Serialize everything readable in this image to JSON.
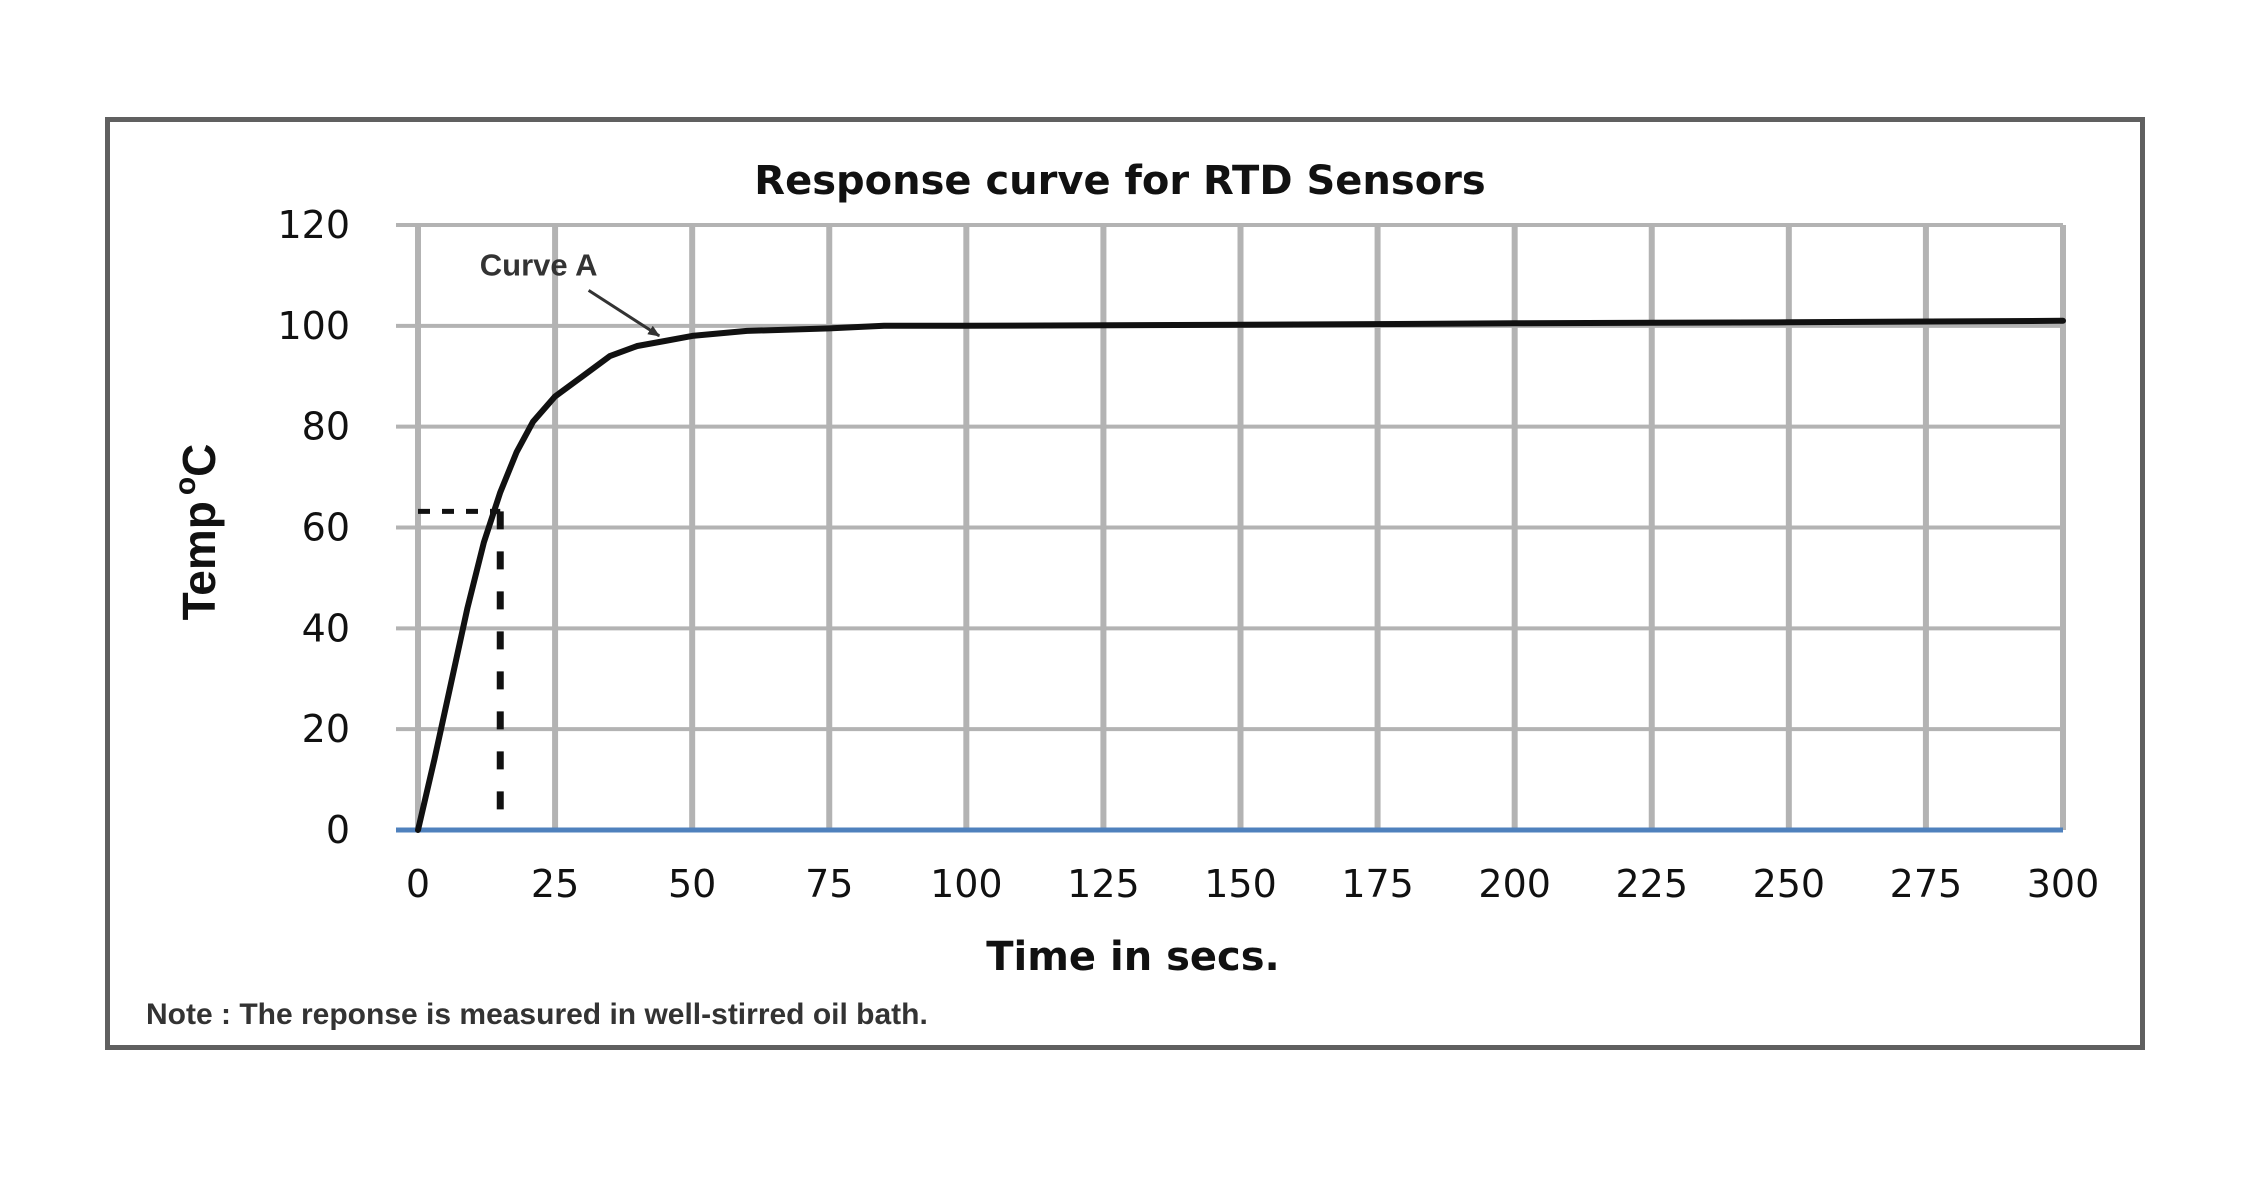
{
  "chart_data": {
    "type": "line",
    "title": "Response curve for RTD Sensors",
    "xlabel": "Time in secs.",
    "ylabel": "Temp",
    "ylabel_sup": "o",
    "ylabel_unit": "C",
    "xlim": [
      0,
      300
    ],
    "ylim": [
      0,
      120
    ],
    "xticks": [
      0,
      25,
      50,
      75,
      100,
      125,
      150,
      175,
      200,
      225,
      250,
      275,
      300
    ],
    "yticks": [
      0,
      20,
      40,
      60,
      80,
      100,
      120
    ],
    "grid": true,
    "colors": {
      "grid": "#b3b3b3",
      "x_axis": "#4f81bd",
      "line": "#111111",
      "frame": "#606060"
    },
    "series": [
      {
        "name": "Curve A",
        "x": [
          0,
          3,
          6,
          9,
          12,
          15,
          18,
          21,
          25,
          30,
          35,
          40,
          45,
          50,
          60,
          75,
          85,
          100,
          150,
          200,
          250,
          300
        ],
        "y": [
          0,
          14,
          29,
          44,
          57,
          67,
          75,
          81,
          86,
          90,
          94,
          96,
          97,
          98,
          99,
          99.5,
          100,
          100,
          100.2,
          100.5,
          100.7,
          101
        ]
      }
    ],
    "annotations": [
      {
        "text": "Curve A",
        "x": 22,
        "y": 110,
        "arrow_to": {
          "x": 44,
          "y": 98
        }
      }
    ],
    "reference_lines": {
      "time_constant_x": 15,
      "time_constant_y": 63.2
    }
  },
  "note": "Note : The reponse is measured in well-stirred oil bath."
}
